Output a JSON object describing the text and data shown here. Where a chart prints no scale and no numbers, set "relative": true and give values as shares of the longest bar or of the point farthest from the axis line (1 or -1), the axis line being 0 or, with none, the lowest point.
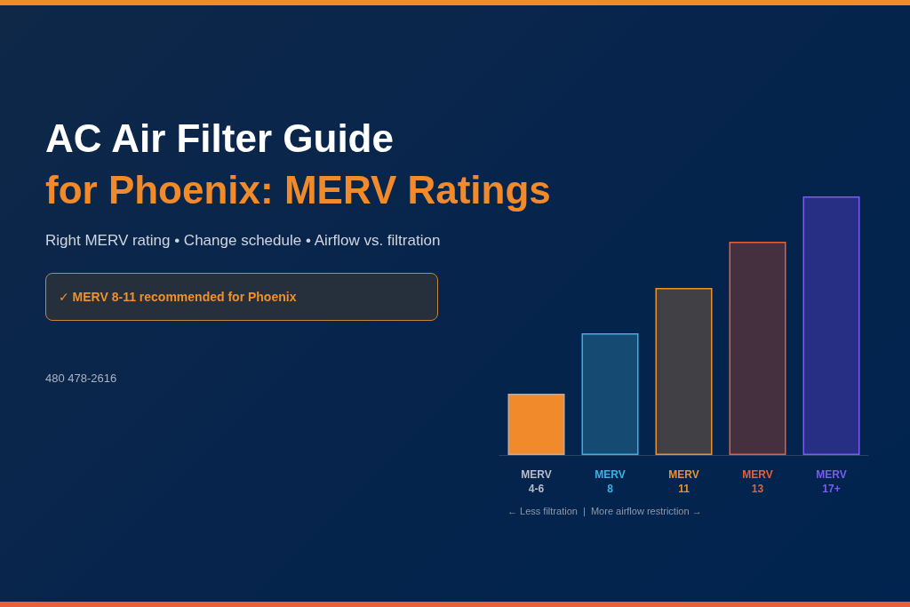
{
  "chart_data": {
    "type": "bar",
    "title": "AC Air Filter Guide",
    "subtitle": "for Phoenix: MERV Ratings",
    "annotations": [
      "Right MERV rating • Change schedule • Airflow vs. filtration",
      "✓ MERV 8-11 recommended for Phoenix",
      "480 478-2616",
      "← Less filtration  |  More airflow restriction →"
    ],
    "categories": [
      "MERV\n4-6",
      "MERV\n8",
      "MERV\n11",
      "MERV\n13",
      "MERV\n17+"
    ],
    "relative": true,
    "values": [
      0.237,
      0.471,
      0.646,
      0.825,
      1
    ],
    "colors": [
      "#f08a2a",
      "#154a72",
      "#414145",
      "#45303f",
      "#272f85"
    ]
  }
}
